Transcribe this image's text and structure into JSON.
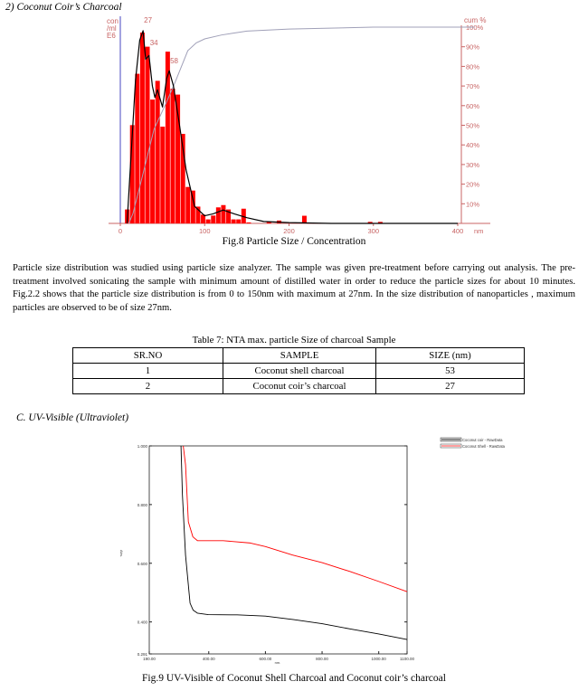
{
  "section_heading": "2)  Coconut Coir’s Charcoal",
  "figure8": {
    "caption": "Fig.8  Particle Size / Concentration"
  },
  "paragraph": "Particle size distribution was studied using particle size analyzer.  The sample was given pre-treatment before carrying out analysis. The pre-treatment involved sonicating the sample with minimum amount of distilled water in order to reduce the particle sizes for about 10 minutes. Fig.2.2 shows that the particle size distribution is from 0 to 150nm with maximum at 27nm. In the size distribution of nanoparticles , maximum particles are observed to be of size 27nm.",
  "table": {
    "caption": "Table 7: NTA max. particle Size of charcoal Sample",
    "headers": [
      "SR.NO",
      "SAMPLE",
      "SIZE (nm)"
    ],
    "rows": [
      [
        "1",
        "Coconut shell charcoal",
        "53"
      ],
      [
        "2",
        "Coconut coir’s charcoal",
        "27"
      ]
    ]
  },
  "section_c": "C.  UV-Visible (Ultraviolet)",
  "figure9": {
    "caption": "Fig.9 UV-Visible of Coconut Shell Charcoal and Coconut coir’s charcoal"
  },
  "chart_data": [
    {
      "type": "bar",
      "title": "",
      "xlabel": "nm",
      "ylabel": "con /ml E6",
      "y2label": "cum %",
      "xlim": [
        0,
        400
      ],
      "xticks": [
        0,
        100,
        200,
        300,
        400
      ],
      "y2ticks": [
        "10%",
        "20%",
        "30%",
        "40%",
        "50%",
        "60%",
        "70%",
        "80%",
        "90%",
        "100%"
      ],
      "peak_labels": [
        {
          "x": 27,
          "label": "27"
        },
        {
          "x": 34,
          "label": "34"
        },
        {
          "x": 58,
          "label": "58"
        }
      ],
      "bin_width": 6,
      "bars": {
        "x": [
          8.5,
          14.5,
          20.5,
          26.5,
          32.5,
          38.5,
          44.5,
          50.5,
          56.5,
          62.5,
          68.5,
          74.5,
          80.5,
          86.5,
          92.5,
          98.5,
          104.5,
          110.5,
          116.5,
          122.5,
          128.5,
          134.5,
          140.5,
          146.5,
          152.5,
          176.5,
          188.5,
          218.5,
          296.5,
          308.5
        ],
        "values": [
          7.3,
          51.5,
          78.4,
          100,
          92.6,
          64.9,
          74.7,
          50.7,
          90,
          70.6,
          67.5,
          46.9,
          19.1,
          17.2,
          8.8,
          4.6,
          2.1,
          4.1,
          8.4,
          9.6,
          7.3,
          2.1,
          2.1,
          7.7,
          0.5,
          1,
          1.5,
          4,
          0.8,
          0.8
        ]
      },
      "fit_curve": [
        [
          8,
          0
        ],
        [
          12,
          30
        ],
        [
          18,
          75
        ],
        [
          23,
          96
        ],
        [
          27,
          101
        ],
        [
          30,
          86
        ],
        [
          34,
          88
        ],
        [
          38,
          72
        ],
        [
          41,
          66
        ],
        [
          44,
          70
        ],
        [
          50,
          61
        ],
        [
          55,
          76
        ],
        [
          58,
          80
        ],
        [
          63,
          72
        ],
        [
          70,
          52
        ],
        [
          78,
          28
        ],
        [
          88,
          9
        ],
        [
          100,
          4
        ],
        [
          110,
          5
        ],
        [
          122,
          7
        ],
        [
          135,
          5
        ],
        [
          150,
          3
        ],
        [
          170,
          1
        ],
        [
          200,
          0.4
        ],
        [
          250,
          0
        ],
        [
          400,
          0
        ]
      ],
      "cumulative_pct": [
        [
          10,
          0
        ],
        [
          15,
          5
        ],
        [
          25,
          22
        ],
        [
          40,
          48
        ],
        [
          55,
          62
        ],
        [
          65,
          72
        ],
        [
          80,
          88
        ],
        [
          90,
          92
        ],
        [
          100,
          94
        ],
        [
          120,
          96
        ],
        [
          150,
          98
        ],
        [
          200,
          99
        ],
        [
          300,
          100
        ],
        [
          420,
          100
        ]
      ],
      "colors": {
        "bars": "#ff0000",
        "fit": "#000000",
        "cum": "#a0a0b8",
        "axis_right": "#c86464",
        "axis_left": "#6666cc"
      }
    },
    {
      "type": "line",
      "title": "",
      "xlabel": "nm.",
      "ylabel": "Abs.",
      "xlim": [
        190,
        1100
      ],
      "ylim": [
        0.291,
        1.0
      ],
      "xticks": [
        "190.00",
        "400.00",
        "600.00",
        "800.00",
        "1000.00",
        "1100.00"
      ],
      "yticks": [
        "1.000",
        "0.800",
        "0.600",
        "0.400",
        "0.291"
      ],
      "legend": "top-right",
      "series": [
        {
          "name": "Coconut coir - RawData",
          "color": "#000000",
          "points": [
            [
              302,
              1.0
            ],
            [
              307,
              0.834
            ],
            [
              318,
              0.628
            ],
            [
              334,
              0.464
            ],
            [
              345,
              0.44
            ],
            [
              360,
              0.43
            ],
            [
              398,
              0.425
            ],
            [
              500,
              0.424
            ],
            [
              600,
              0.42
            ],
            [
              700,
              0.408
            ],
            [
              800,
              0.394
            ],
            [
              900,
              0.376
            ],
            [
              1000,
              0.359
            ],
            [
              1100,
              0.34
            ]
          ]
        },
        {
          "name": "Coconut Shell - RawData",
          "color": "#ff0000",
          "points": [
            [
              310,
              1.0
            ],
            [
              318,
              0.936
            ],
            [
              328,
              0.741
            ],
            [
              344,
              0.69
            ],
            [
              360,
              0.677
            ],
            [
              451,
              0.677
            ],
            [
              547,
              0.669
            ],
            [
              600,
              0.657
            ],
            [
              696,
              0.628
            ],
            [
              800,
              0.602
            ],
            [
              898,
              0.572
            ],
            [
              1000,
              0.538
            ],
            [
              1100,
              0.503
            ]
          ]
        }
      ]
    }
  ]
}
